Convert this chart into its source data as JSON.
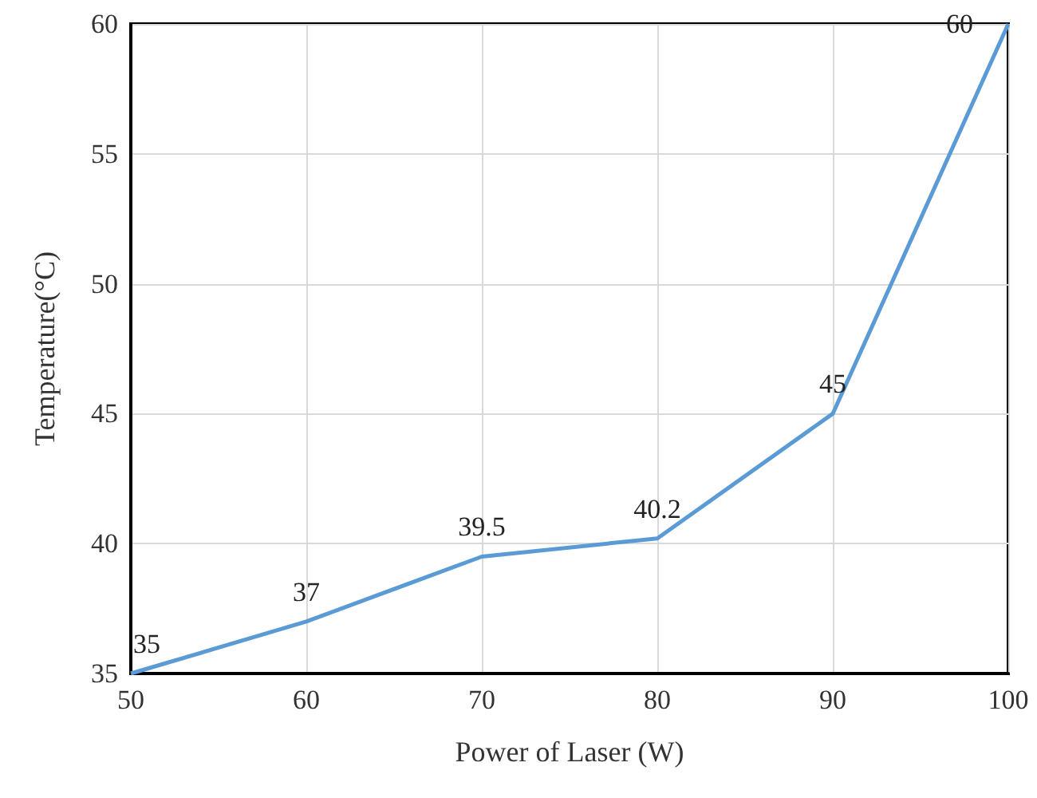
{
  "chart_data": {
    "type": "line",
    "xlabel": "Power of Laser (W)",
    "ylabel": "Temperature(°C)",
    "x": [
      50,
      60,
      70,
      80,
      90,
      100
    ],
    "series": [
      {
        "color": "#5b9bd5",
        "values": [
          35,
          37,
          39.5,
          40.2,
          45,
          60
        ]
      }
    ],
    "xlim": [
      50,
      100
    ],
    "xticks": [
      50,
      60,
      70,
      80,
      90,
      100
    ],
    "ylim": [
      35,
      60
    ],
    "yticks": [
      35,
      40,
      45,
      50,
      55,
      60
    ],
    "grid": true,
    "data_labels": true,
    "marker": "none",
    "line_style": "solid"
  }
}
